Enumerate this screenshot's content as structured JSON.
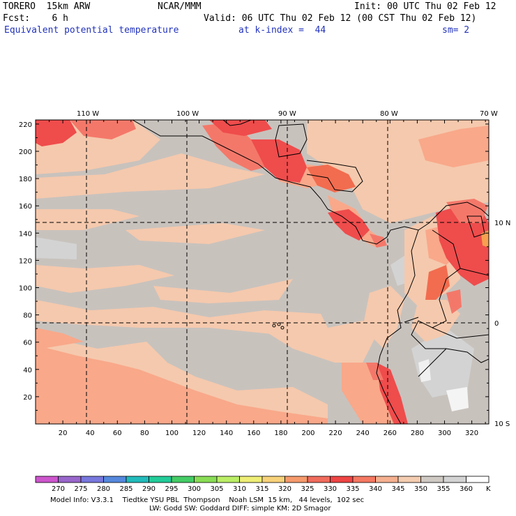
{
  "header": {
    "model": "TORERO  15km ARW",
    "center": "NCAR/MMM",
    "init": "Init: 00 UTC Thu 02 Feb 12",
    "fcst": "Fcst:    6 h",
    "valid": "Valid: 06 UTC Thu 02 Feb 12 (00 CST Thu 02 Feb 12)",
    "field": "Equivalent potential temperature",
    "level": "at k-index =  44",
    "smooth": "sm= 2"
  },
  "map": {
    "x_ticks": [
      "20",
      "40",
      "60",
      "80",
      "100",
      "120",
      "140",
      "160",
      "180",
      "200",
      "220",
      "240",
      "260",
      "280",
      "300",
      "320"
    ],
    "y_ticks": [
      "20",
      "40",
      "60",
      "80",
      "100",
      "120",
      "140",
      "160",
      "180",
      "200",
      "220"
    ],
    "lon_labels": [
      "110 W",
      "100 W",
      "90 W",
      "80 W",
      "70 W"
    ],
    "lat_labels": [
      "10 N",
      "0",
      "10 S"
    ],
    "colors": {
      "grey_light": "#d3d3d3",
      "grey": "#c8c2bd",
      "peach": "#f5c9ad",
      "salmon": "#f9a88a",
      "coral": "#f4786a",
      "red": "#ef4c4c",
      "orange_red": "#f26c4f"
    }
  },
  "colorbar": {
    "values": [
      "270",
      "275",
      "280",
      "285",
      "290",
      "295",
      "300",
      "305",
      "310",
      "315",
      "320",
      "325",
      "330",
      "335",
      "340",
      "345",
      "350",
      "355",
      "360"
    ],
    "unit": "K",
    "colors": [
      "#cc55cc",
      "#9966cc",
      "#7777dd",
      "#5588dd",
      "#22bbbb",
      "#22cc99",
      "#44cc66",
      "#88dd55",
      "#bbee66",
      "#eeee77",
      "#f7d27a",
      "#f59a6c",
      "#f06c5c",
      "#ee4444",
      "#f47862",
      "#f5b090",
      "#f4ccb0",
      "#cfc9c4",
      "#d3d3d3",
      "#ffffff"
    ]
  },
  "footer": {
    "line1": "Model Info: V3.3.1    Tiedtke YSU PBL  Thompson    Noah LSM  15 km,   44 levels,  102 sec",
    "line2": "LW: Godd SW: Goddard DIFF: simple KM: 2D Smagor"
  }
}
